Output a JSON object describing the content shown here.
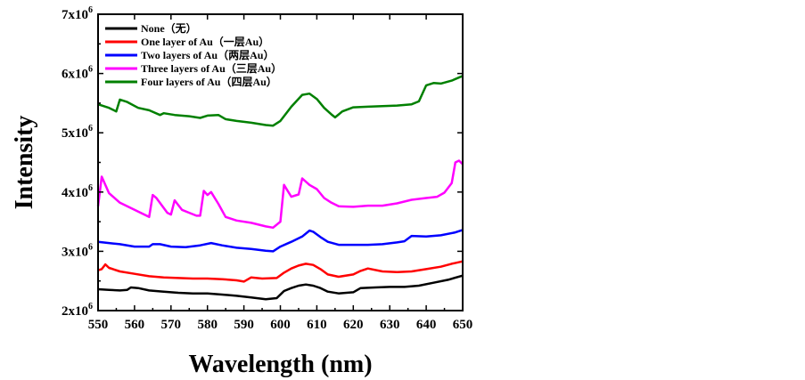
{
  "chart_data": {
    "type": "line",
    "title": "",
    "xlabel": "Wavelength (nm)",
    "ylabel": "Intensity",
    "xlim": [
      550,
      650
    ],
    "ylim": [
      2000000,
      7000000
    ],
    "x_ticks": [
      550,
      560,
      570,
      580,
      590,
      600,
      610,
      620,
      630,
      640,
      650
    ],
    "y_ticks": [
      {
        "value": 2000000,
        "base": "2x10",
        "exp": "6"
      },
      {
        "value": 3000000,
        "base": "3x10",
        "exp": "6"
      },
      {
        "value": 4000000,
        "base": "4x10",
        "exp": "6"
      },
      {
        "value": 5000000,
        "base": "5x10",
        "exp": "6"
      },
      {
        "value": 6000000,
        "base": "6x10",
        "exp": "6"
      },
      {
        "value": 7000000,
        "base": "7x10",
        "exp": "6"
      }
    ],
    "grid": false,
    "legend_position": "top-left",
    "series": [
      {
        "name": "None（无）",
        "color": "#000000",
        "points": [
          [
            550,
            2360000
          ],
          [
            553,
            2350000
          ],
          [
            556,
            2340000
          ],
          [
            558,
            2350000
          ],
          [
            559,
            2390000
          ],
          [
            561,
            2380000
          ],
          [
            564,
            2340000
          ],
          [
            568,
            2320000
          ],
          [
            572,
            2300000
          ],
          [
            576,
            2290000
          ],
          [
            580,
            2290000
          ],
          [
            584,
            2270000
          ],
          [
            588,
            2250000
          ],
          [
            592,
            2220000
          ],
          [
            596,
            2190000
          ],
          [
            599,
            2210000
          ],
          [
            601,
            2330000
          ],
          [
            603,
            2380000
          ],
          [
            605,
            2420000
          ],
          [
            607,
            2440000
          ],
          [
            609,
            2420000
          ],
          [
            611,
            2380000
          ],
          [
            613,
            2320000
          ],
          [
            616,
            2290000
          ],
          [
            620,
            2310000
          ],
          [
            622,
            2380000
          ],
          [
            626,
            2390000
          ],
          [
            630,
            2400000
          ],
          [
            634,
            2400000
          ],
          [
            638,
            2420000
          ],
          [
            642,
            2470000
          ],
          [
            646,
            2520000
          ],
          [
            650,
            2590000
          ]
        ]
      },
      {
        "name": "One layer of Au（一层Au）",
        "color": "#ff0000",
        "points": [
          [
            550,
            2680000
          ],
          [
            551,
            2700000
          ],
          [
            552,
            2780000
          ],
          [
            553,
            2720000
          ],
          [
            556,
            2660000
          ],
          [
            560,
            2620000
          ],
          [
            564,
            2580000
          ],
          [
            568,
            2560000
          ],
          [
            572,
            2550000
          ],
          [
            576,
            2540000
          ],
          [
            580,
            2540000
          ],
          [
            584,
            2530000
          ],
          [
            588,
            2510000
          ],
          [
            590,
            2490000
          ],
          [
            592,
            2560000
          ],
          [
            595,
            2540000
          ],
          [
            599,
            2550000
          ],
          [
            601,
            2640000
          ],
          [
            603,
            2710000
          ],
          [
            605,
            2760000
          ],
          [
            607,
            2790000
          ],
          [
            609,
            2770000
          ],
          [
            611,
            2700000
          ],
          [
            613,
            2610000
          ],
          [
            616,
            2570000
          ],
          [
            620,
            2610000
          ],
          [
            622,
            2670000
          ],
          [
            624,
            2710000
          ],
          [
            628,
            2660000
          ],
          [
            632,
            2650000
          ],
          [
            636,
            2660000
          ],
          [
            640,
            2700000
          ],
          [
            644,
            2740000
          ],
          [
            647,
            2790000
          ],
          [
            650,
            2830000
          ]
        ]
      },
      {
        "name": "Two layers of Au（两层Au）",
        "color": "#0000ff",
        "points": [
          [
            550,
            3160000
          ],
          [
            553,
            3140000
          ],
          [
            556,
            3120000
          ],
          [
            560,
            3080000
          ],
          [
            564,
            3080000
          ],
          [
            565,
            3120000
          ],
          [
            567,
            3120000
          ],
          [
            570,
            3080000
          ],
          [
            574,
            3070000
          ],
          [
            578,
            3100000
          ],
          [
            581,
            3140000
          ],
          [
            584,
            3100000
          ],
          [
            588,
            3060000
          ],
          [
            592,
            3040000
          ],
          [
            596,
            3010000
          ],
          [
            598,
            3000000
          ],
          [
            600,
            3080000
          ],
          [
            603,
            3160000
          ],
          [
            606,
            3250000
          ],
          [
            608,
            3350000
          ],
          [
            609,
            3330000
          ],
          [
            611,
            3240000
          ],
          [
            613,
            3160000
          ],
          [
            616,
            3110000
          ],
          [
            620,
            3110000
          ],
          [
            624,
            3110000
          ],
          [
            628,
            3120000
          ],
          [
            632,
            3150000
          ],
          [
            634,
            3170000
          ],
          [
            636,
            3260000
          ],
          [
            640,
            3250000
          ],
          [
            644,
            3270000
          ],
          [
            648,
            3320000
          ],
          [
            650,
            3360000
          ]
        ]
      },
      {
        "name": "Three layers of Au（三层Au）",
        "color": "#ff00ff",
        "points": [
          [
            550,
            3760000
          ],
          [
            551,
            4260000
          ],
          [
            553,
            3980000
          ],
          [
            556,
            3820000
          ],
          [
            560,
            3700000
          ],
          [
            564,
            3580000
          ],
          [
            565,
            3950000
          ],
          [
            566,
            3900000
          ],
          [
            569,
            3650000
          ],
          [
            570,
            3620000
          ],
          [
            571,
            3860000
          ],
          [
            573,
            3700000
          ],
          [
            575,
            3650000
          ],
          [
            577,
            3600000
          ],
          [
            578,
            3600000
          ],
          [
            579,
            4020000
          ],
          [
            580,
            3950000
          ],
          [
            581,
            4000000
          ],
          [
            583,
            3800000
          ],
          [
            585,
            3580000
          ],
          [
            588,
            3520000
          ],
          [
            592,
            3480000
          ],
          [
            596,
            3420000
          ],
          [
            598,
            3400000
          ],
          [
            600,
            3500000
          ],
          [
            601,
            4120000
          ],
          [
            603,
            3920000
          ],
          [
            605,
            3960000
          ],
          [
            606,
            4230000
          ],
          [
            608,
            4120000
          ],
          [
            610,
            4050000
          ],
          [
            612,
            3900000
          ],
          [
            614,
            3820000
          ],
          [
            616,
            3760000
          ],
          [
            620,
            3750000
          ],
          [
            624,
            3770000
          ],
          [
            628,
            3770000
          ],
          [
            632,
            3810000
          ],
          [
            636,
            3870000
          ],
          [
            640,
            3900000
          ],
          [
            643,
            3920000
          ],
          [
            645,
            3990000
          ],
          [
            647,
            4150000
          ],
          [
            648,
            4500000
          ],
          [
            649,
            4530000
          ],
          [
            650,
            4470000
          ]
        ]
      },
      {
        "name": "Four layers of Au（四层Au）",
        "color": "#008000",
        "points": [
          [
            550,
            5480000
          ],
          [
            553,
            5420000
          ],
          [
            555,
            5360000
          ],
          [
            556,
            5560000
          ],
          [
            558,
            5520000
          ],
          [
            561,
            5420000
          ],
          [
            564,
            5380000
          ],
          [
            567,
            5300000
          ],
          [
            568,
            5330000
          ],
          [
            571,
            5300000
          ],
          [
            575,
            5280000
          ],
          [
            578,
            5250000
          ],
          [
            580,
            5290000
          ],
          [
            583,
            5300000
          ],
          [
            585,
            5230000
          ],
          [
            588,
            5200000
          ],
          [
            592,
            5170000
          ],
          [
            596,
            5130000
          ],
          [
            598,
            5120000
          ],
          [
            600,
            5200000
          ],
          [
            603,
            5440000
          ],
          [
            606,
            5640000
          ],
          [
            608,
            5660000
          ],
          [
            610,
            5570000
          ],
          [
            612,
            5420000
          ],
          [
            614,
            5310000
          ],
          [
            615,
            5260000
          ],
          [
            617,
            5360000
          ],
          [
            620,
            5430000
          ],
          [
            624,
            5440000
          ],
          [
            628,
            5450000
          ],
          [
            632,
            5460000
          ],
          [
            636,
            5480000
          ],
          [
            638,
            5530000
          ],
          [
            640,
            5800000
          ],
          [
            642,
            5840000
          ],
          [
            644,
            5830000
          ],
          [
            647,
            5880000
          ],
          [
            650,
            5960000
          ]
        ]
      }
    ]
  }
}
